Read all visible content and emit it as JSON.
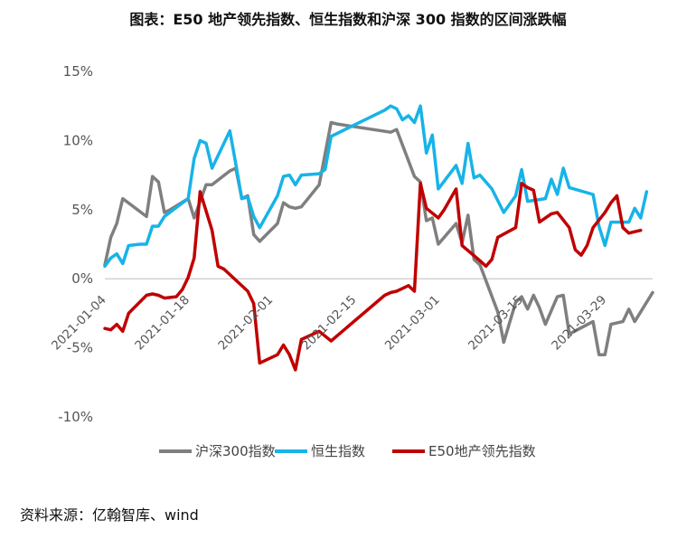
{
  "title": "图表：E50 地产领先指数、恒生指数和沪深 300 指数的区间涨跌幅",
  "source": "资料来源：亿翰智库、wind",
  "chart_data": {
    "type": "line",
    "title": "图表：E50 地产领先指数、恒生指数和沪深 300 指数的区间涨跌幅",
    "xlabel": "",
    "ylabel": "",
    "ylim": [
      -10,
      15
    ],
    "yticks": [
      "-10%",
      "-5%",
      "0%",
      "5%",
      "10%",
      "15%"
    ],
    "x_tick_labels": [
      "2021-01-04",
      "2021-01-18",
      "2021-02-01",
      "2021-02-15",
      "2021-03-01",
      "2021-03-15",
      "2021-03-29"
    ],
    "x_range_days": [
      0,
      88
    ],
    "x_tick_days": [
      0,
      14,
      28,
      42,
      56,
      70,
      84
    ],
    "grid": false,
    "legend_position": "bottom",
    "series": [
      {
        "name": "沪深300指数",
        "color": "#7f7f7f",
        "points": [
          [
            0,
            1
          ],
          [
            1,
            3
          ],
          [
            2,
            4
          ],
          [
            3,
            5.8
          ],
          [
            7,
            4.5
          ],
          [
            8,
            7.4
          ],
          [
            9,
            7
          ],
          [
            10,
            4.8
          ],
          [
            11,
            5
          ],
          [
            14,
            5.8
          ],
          [
            15,
            4.4
          ],
          [
            17,
            6.8
          ],
          [
            18,
            6.8
          ],
          [
            21,
            7.8
          ],
          [
            22,
            8
          ],
          [
            23,
            5.8
          ],
          [
            24,
            6
          ],
          [
            25,
            3.2
          ],
          [
            26,
            2.7
          ],
          [
            29,
            4
          ],
          [
            30,
            5.5
          ],
          [
            31,
            5.2
          ],
          [
            32,
            5.1
          ],
          [
            33,
            5.2
          ],
          [
            36,
            6.8
          ],
          [
            38,
            11.3
          ],
          [
            39,
            11.2
          ],
          [
            48,
            10.6
          ],
          [
            49,
            10.8
          ],
          [
            52,
            7.4
          ],
          [
            53,
            7
          ],
          [
            54,
            4.2
          ],
          [
            55,
            4.4
          ],
          [
            56,
            2.5
          ],
          [
            59,
            4
          ],
          [
            60,
            2.6
          ],
          [
            61,
            4.6
          ],
          [
            62,
            1.4
          ],
          [
            63,
            1
          ],
          [
            66,
            -2.4
          ],
          [
            67,
            -4.6
          ],
          [
            69,
            -1.7
          ],
          [
            70,
            -1.3
          ],
          [
            71,
            -2.2
          ],
          [
            72,
            -1.2
          ],
          [
            73,
            -2.1
          ],
          [
            74,
            -3.3
          ],
          [
            76,
            -1.3
          ],
          [
            77,
            -1.2
          ],
          [
            78,
            -4
          ],
          [
            82,
            -3.1
          ],
          [
            83,
            -5.5
          ],
          [
            84,
            -5.5
          ],
          [
            85,
            -3.3
          ],
          [
            87,
            -3.1
          ],
          [
            88,
            -2.2
          ],
          [
            89,
            -3.1
          ],
          [
            92,
            -1
          ]
        ]
      },
      {
        "name": "恒生指数",
        "color": "#17b3e8",
        "points": [
          [
            0,
            0.9
          ],
          [
            1,
            1.5
          ],
          [
            2,
            1.8
          ],
          [
            3,
            1.1
          ],
          [
            4,
            2.4
          ],
          [
            6,
            2.5
          ],
          [
            7,
            2.5
          ],
          [
            8,
            3.8
          ],
          [
            9,
            3.8
          ],
          [
            10,
            4.5
          ],
          [
            14,
            5.8
          ],
          [
            15,
            8.7
          ],
          [
            16,
            10
          ],
          [
            17,
            9.8
          ],
          [
            18,
            8
          ],
          [
            21,
            10.7
          ],
          [
            22,
            8.3
          ],
          [
            23,
            5.8
          ],
          [
            24,
            5.9
          ],
          [
            25,
            4.5
          ],
          [
            26,
            3.7
          ],
          [
            29,
            6
          ],
          [
            30,
            7.4
          ],
          [
            31,
            7.5
          ],
          [
            32,
            6.8
          ],
          [
            33,
            7.5
          ],
          [
            36,
            7.6
          ],
          [
            37,
            7.9
          ],
          [
            38,
            10.3
          ],
          [
            47,
            12.2
          ],
          [
            48,
            12.5
          ],
          [
            49,
            12.3
          ],
          [
            50,
            11.5
          ],
          [
            51,
            11.8
          ],
          [
            52,
            11.3
          ],
          [
            53,
            12.5
          ],
          [
            54,
            9.1
          ],
          [
            55,
            10.4
          ],
          [
            56,
            6.5
          ],
          [
            59,
            8.2
          ],
          [
            60,
            6.9
          ],
          [
            61,
            9.8
          ],
          [
            62,
            7.3
          ],
          [
            63,
            7.5
          ],
          [
            65,
            6.5
          ],
          [
            67,
            4.8
          ],
          [
            69,
            6
          ],
          [
            70,
            7.9
          ],
          [
            71,
            5.6
          ],
          [
            74,
            5.8
          ],
          [
            75,
            7.2
          ],
          [
            76,
            6.1
          ],
          [
            77,
            8
          ],
          [
            78,
            6.6
          ],
          [
            82,
            6.1
          ],
          [
            83,
            3.8
          ],
          [
            84,
            2.4
          ],
          [
            85,
            4.1
          ],
          [
            88,
            4.1
          ],
          [
            89,
            5.1
          ],
          [
            90,
            4.4
          ],
          [
            91,
            6.3
          ]
        ]
      },
      {
        "name": "E50地产领先指数",
        "color": "#c00000",
        "points": [
          [
            0,
            -3.6
          ],
          [
            1,
            -3.7
          ],
          [
            2,
            -3.3
          ],
          [
            3,
            -3.8
          ],
          [
            4,
            -2.5
          ],
          [
            7,
            -1.2
          ],
          [
            8,
            -1.1
          ],
          [
            9,
            -1.2
          ],
          [
            10,
            -1.4
          ],
          [
            12,
            -1.3
          ],
          [
            13,
            -0.8
          ],
          [
            14,
            0.1
          ],
          [
            15,
            1.5
          ],
          [
            16,
            6.3
          ],
          [
            18,
            3.5
          ],
          [
            19,
            0.9
          ],
          [
            20,
            0.7
          ],
          [
            24,
            -0.9
          ],
          [
            25,
            -1.8
          ],
          [
            26,
            -6.1
          ],
          [
            29,
            -5.5
          ],
          [
            30,
            -4.8
          ],
          [
            31,
            -5.5
          ],
          [
            32,
            -6.6
          ],
          [
            33,
            -4.4
          ],
          [
            36,
            -3.8
          ],
          [
            38,
            -4.5
          ],
          [
            47,
            -1.2
          ],
          [
            48,
            -1
          ],
          [
            49,
            -0.9
          ],
          [
            50,
            -0.7
          ],
          [
            51,
            -0.5
          ],
          [
            52,
            -0.9
          ],
          [
            53,
            6.9
          ],
          [
            54,
            5.1
          ],
          [
            56,
            4.4
          ],
          [
            57,
            5
          ],
          [
            59,
            6.5
          ],
          [
            60,
            2.4
          ],
          [
            63,
            1.3
          ],
          [
            64,
            0.9
          ],
          [
            65,
            1.4
          ],
          [
            66,
            3
          ],
          [
            69,
            3.7
          ],
          [
            70,
            6.9
          ],
          [
            71,
            6.6
          ],
          [
            72,
            6.4
          ],
          [
            73,
            4.1
          ],
          [
            75,
            4.7
          ],
          [
            76,
            4.8
          ],
          [
            78,
            3.7
          ],
          [
            79,
            2.1
          ],
          [
            80,
            1.7
          ],
          [
            81,
            2.4
          ],
          [
            82,
            3.7
          ],
          [
            84,
            4.8
          ],
          [
            85,
            5.5
          ],
          [
            86,
            6
          ],
          [
            87,
            3.7
          ],
          [
            88,
            3.3
          ],
          [
            89,
            3.4
          ],
          [
            90,
            3.5
          ]
        ]
      }
    ]
  }
}
